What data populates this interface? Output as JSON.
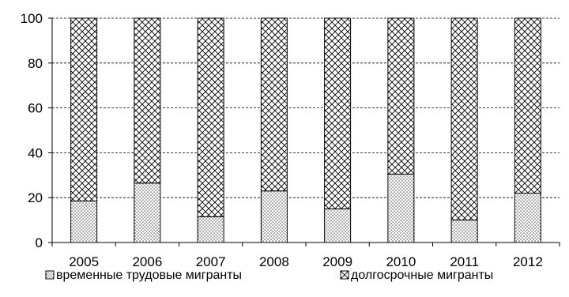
{
  "chart_data": {
    "type": "bar",
    "stacked": true,
    "categories": [
      "2005",
      "2006",
      "2007",
      "2008",
      "2009",
      "2010",
      "2011",
      "2012"
    ],
    "series": [
      {
        "name": "временные трудовые мигранты",
        "values": [
          18.5,
          26.5,
          11.5,
          23,
          15,
          30.5,
          10,
          22
        ],
        "pattern": "dots"
      },
      {
        "name": "долгосрочные мигранты",
        "values": [
          81.5,
          73.5,
          88.5,
          77,
          85,
          69.5,
          90,
          78
        ],
        "pattern": "crosshatch"
      }
    ],
    "title": "",
    "xlabel": "",
    "ylabel": "",
    "ylim": [
      0,
      100
    ],
    "yticks": [
      "0",
      "20",
      "40",
      "60",
      "80",
      "100"
    ],
    "grid": "horizontal-dashed",
    "legend_position": "bottom"
  },
  "colors": {
    "bar_fill": "#ffffff",
    "bar_stroke": "#000000",
    "pattern": "#000000",
    "grid": "#000000"
  }
}
